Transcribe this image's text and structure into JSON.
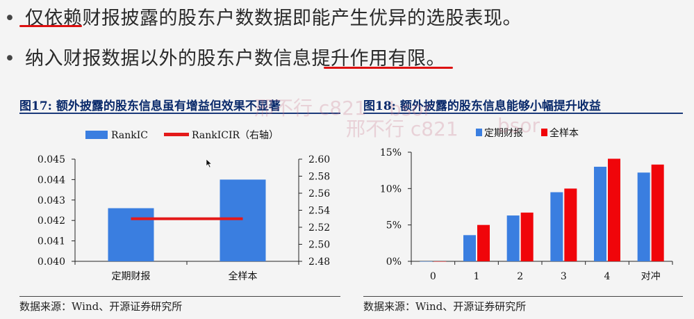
{
  "bullets": [
    {
      "dot": "•",
      "text": "仅依赖财报披露的股东户数数据即能产生优异的选股表现。"
    },
    {
      "dot": "•",
      "text": "纳入财报数据以外的股东户数信息提升作用有限。"
    }
  ],
  "figures": [
    {
      "label": "图17:",
      "title": "额外披露的股东信息虽有增益但效果不显著",
      "source": "数据来源：Wind、开源证券研究所"
    },
    {
      "label": "图18:",
      "title": "额外披露的股东信息能够小幅提升收益",
      "source": "数据来源：Wind、开源证券研究所"
    }
  ],
  "watermarks": [
    "邢不行 c821",
    "邢不行 c821",
    "bsor",
    "bsor"
  ],
  "chart_data": [
    {
      "type": "bar",
      "categories": [
        "定期财报",
        "全样本"
      ],
      "series": [
        {
          "name": "RankIC",
          "type": "bar",
          "axis": "left",
          "color": "#3a7ee0",
          "values": [
            0.0426,
            0.044
          ]
        },
        {
          "name": "RankICIR（右轴）",
          "type": "line",
          "axis": "right",
          "color": "#e41a1a",
          "values": [
            2.53,
            2.53
          ]
        }
      ],
      "ylim": [
        0.04,
        0.045
      ],
      "yticks": [
        "0.040",
        "0.041",
        "0.042",
        "0.043",
        "0.044",
        "0.045"
      ],
      "y2lim": [
        2.48,
        2.6
      ],
      "y2ticks": [
        "2.48",
        "2.50",
        "2.52",
        "2.54",
        "2.56",
        "2.58",
        "2.60"
      ],
      "legend": "top-left",
      "grid": false
    },
    {
      "type": "bar",
      "categories": [
        "0",
        "1",
        "2",
        "3",
        "4",
        "对冲"
      ],
      "series": [
        {
          "name": "定期财报",
          "color": "#3a7ee0",
          "values": [
            0.0,
            3.6,
            6.3,
            9.5,
            13.0,
            12.2
          ]
        },
        {
          "name": "全样本",
          "color": "#f0050a",
          "values": [
            0.0,
            5.0,
            6.7,
            10.0,
            14.1,
            13.3
          ]
        }
      ],
      "ylim": [
        0,
        15
      ],
      "yticks": [
        "0%",
        "5%",
        "10%",
        "15%"
      ],
      "legend": "top",
      "grid": false
    }
  ]
}
